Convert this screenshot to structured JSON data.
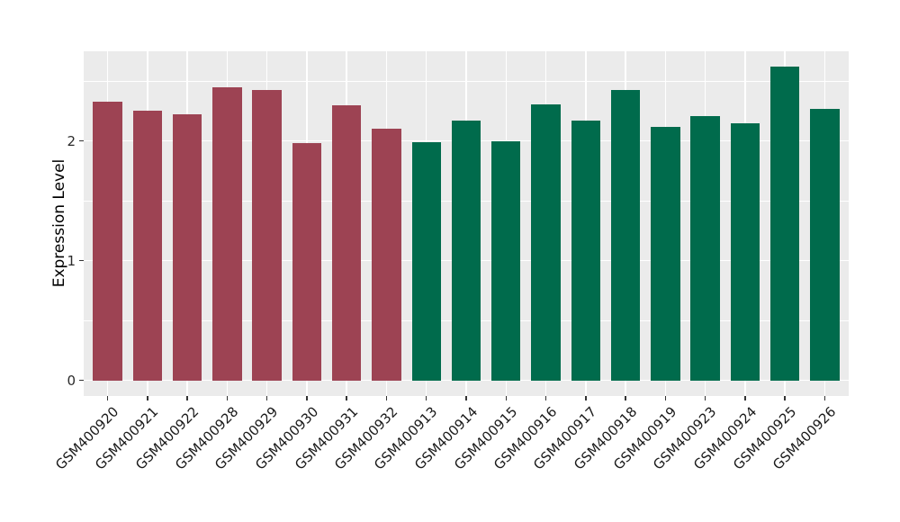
{
  "figure": {
    "background": "#FFFFFF",
    "panel_background": "#EBEBEB",
    "gridline_color": "#FFFFFF",
    "tick_mark_color": "#333333",
    "axis_text_color": "#1A1A1A"
  },
  "chart_data": {
    "type": "bar",
    "title": "",
    "xlabel": "",
    "ylabel": "Expression Level",
    "legend_position": "none",
    "grid": "on",
    "x_tick_angle": 45,
    "yticks": [
      "0",
      "1",
      "2"
    ],
    "ytick_values": [
      0,
      1,
      2
    ],
    "y_minor_gridlines": [
      0.5,
      1.5,
      2.5
    ],
    "ylim": [
      -0.13,
      2.75
    ],
    "categories": [
      "GSM400920",
      "GSM400921",
      "GSM400922",
      "GSM400928",
      "GSM400929",
      "GSM400930",
      "GSM400931",
      "GSM400932",
      "GSM400913",
      "GSM400914",
      "GSM400915",
      "GSM400916",
      "GSM400917",
      "GSM400918",
      "GSM400919",
      "GSM400923",
      "GSM400924",
      "GSM400925",
      "GSM400926"
    ],
    "values": [
      2.33,
      2.25,
      2.22,
      2.45,
      2.43,
      1.98,
      2.3,
      2.1,
      1.99,
      2.17,
      2.0,
      2.31,
      2.17,
      2.43,
      2.12,
      2.21,
      2.15,
      2.62,
      2.27
    ],
    "bar_groups": [
      "maroon",
      "maroon",
      "maroon",
      "maroon",
      "maroon",
      "maroon",
      "maroon",
      "maroon",
      "green",
      "green",
      "green",
      "green",
      "green",
      "green",
      "green",
      "green",
      "green",
      "green",
      "green"
    ],
    "group_colors": {
      "maroon": "#9D4353",
      "green": "#006B4C"
    }
  }
}
